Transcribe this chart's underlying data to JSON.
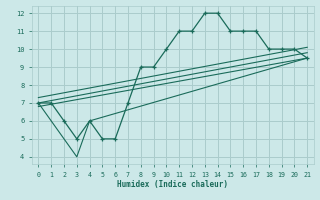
{
  "xlabel": "Humidex (Indice chaleur)",
  "bg_color": "#cce8e8",
  "grid_color": "#aacccc",
  "line_color": "#1a6b5a",
  "xlim": [
    -0.5,
    21.5
  ],
  "ylim": [
    3.6,
    12.4
  ],
  "xticks": [
    0,
    1,
    2,
    3,
    4,
    5,
    6,
    7,
    8,
    9,
    10,
    11,
    12,
    13,
    14,
    15,
    16,
    17,
    18,
    19,
    20,
    21
  ],
  "yticks": [
    4,
    5,
    6,
    7,
    8,
    9,
    10,
    11,
    12
  ],
  "main_line_x": [
    0,
    1,
    2,
    3,
    4,
    5,
    6,
    7,
    8,
    9,
    10,
    11,
    12,
    13,
    14,
    15,
    16,
    17,
    18,
    19,
    20,
    21
  ],
  "main_line_y": [
    7,
    7,
    6,
    5,
    6,
    5,
    5,
    7,
    9,
    9,
    10,
    11,
    11,
    12,
    12,
    11,
    11,
    11,
    10,
    10,
    10,
    9.5
  ],
  "line2_x": [
    0,
    3,
    4,
    21
  ],
  "line2_y": [
    7,
    4,
    6,
    9.5
  ],
  "line3_x": [
    0,
    21
  ],
  "line3_y": [
    6.8,
    9.5
  ],
  "line4_x": [
    0,
    21
  ],
  "line4_y": [
    7.0,
    9.8
  ],
  "line5_x": [
    0,
    21
  ],
  "line5_y": [
    7.3,
    10.1
  ]
}
